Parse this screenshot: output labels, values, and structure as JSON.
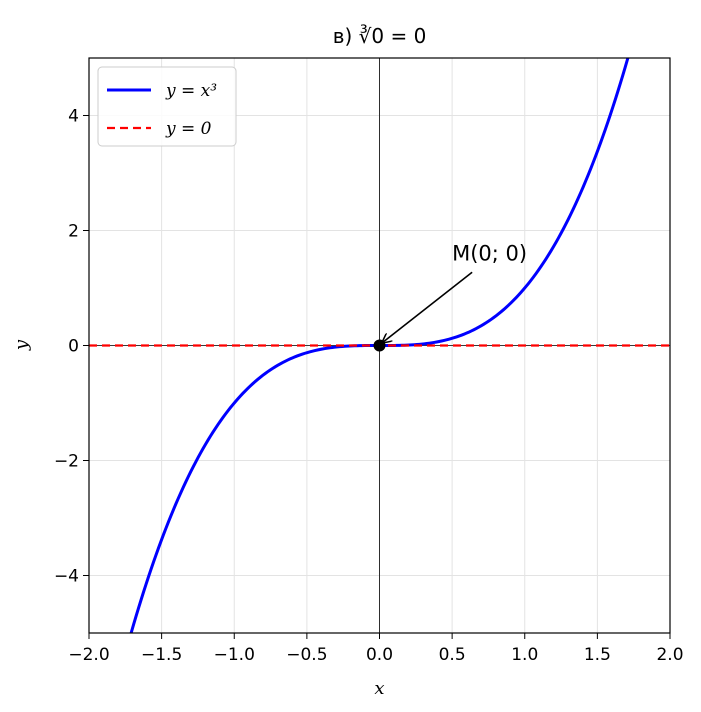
{
  "chart_data": {
    "type": "line",
    "title": "в) ∛0 = 0",
    "xlabel": "x",
    "ylabel": "y",
    "xlim": [
      -2.0,
      2.0
    ],
    "ylim": [
      -5,
      5
    ],
    "xticks": [
      -2.0,
      -1.5,
      -1.0,
      -0.5,
      0.0,
      0.5,
      1.0,
      1.5,
      2.0
    ],
    "xtick_labels": [
      "−2.0",
      "−1.5",
      "−1.0",
      "−0.5",
      "0.0",
      "0.5",
      "1.0",
      "1.5",
      "2.0"
    ],
    "yticks": [
      -4,
      -2,
      0,
      2,
      4
    ],
    "ytick_labels": [
      "−4",
      "−2",
      "0",
      "2",
      "4"
    ],
    "grid": true,
    "legend_position": "top-left",
    "series": [
      {
        "name": "y = x³",
        "function": "x^3",
        "color": "#0000ff",
        "style": "solid",
        "x": [
          -1.71,
          -1.6,
          -1.5,
          -1.4,
          -1.3,
          -1.2,
          -1.1,
          -1.0,
          -0.9,
          -0.8,
          -0.7,
          -0.6,
          -0.5,
          -0.4,
          -0.3,
          -0.2,
          -0.1,
          0.0,
          0.1,
          0.2,
          0.3,
          0.4,
          0.5,
          0.6,
          0.7,
          0.8,
          0.9,
          1.0,
          1.1,
          1.2,
          1.3,
          1.4,
          1.5,
          1.6,
          1.71
        ],
        "y": [
          -5.0,
          -4.096,
          -3.375,
          -2.744,
          -2.197,
          -1.728,
          -1.331,
          -1.0,
          -0.729,
          -0.512,
          -0.343,
          -0.216,
          -0.125,
          -0.064,
          -0.027,
          -0.008,
          -0.001,
          0.0,
          0.001,
          0.008,
          0.027,
          0.064,
          0.125,
          0.216,
          0.343,
          0.512,
          0.729,
          1.0,
          1.331,
          1.728,
          2.197,
          2.744,
          3.375,
          4.096,
          5.0
        ]
      },
      {
        "name": "y = 0",
        "function": "0",
        "color": "#ff0000",
        "style": "dashed",
        "x": [
          -2.0,
          2.0
        ],
        "y": [
          0,
          0
        ]
      }
    ],
    "points": [
      {
        "x": 0,
        "y": 0,
        "color": "#000000"
      }
    ],
    "annotations": [
      {
        "text": "M(0; 0)",
        "text_x": 0.5,
        "text_y": 1.5,
        "arrow_to_x": 0.02,
        "arrow_to_y": 0.05
      }
    ]
  }
}
